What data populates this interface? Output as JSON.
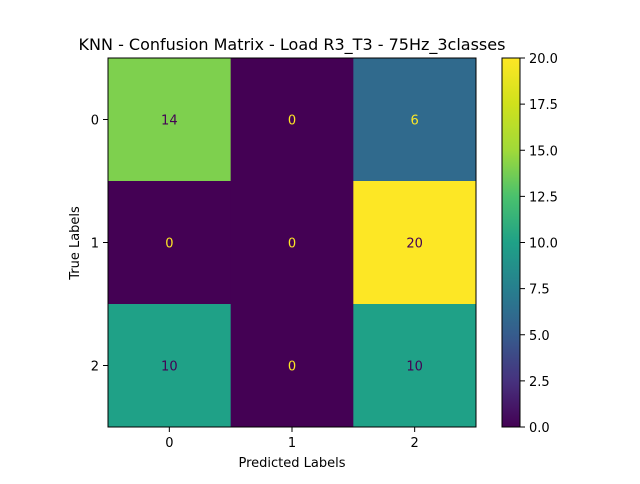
{
  "chart_data": {
    "type": "heatmap",
    "title": "KNN - Confusion Matrix - Load R3_T3 - 75Hz_3classes",
    "xlabel": "Predicted Labels",
    "ylabel": "True Labels",
    "x_categories": [
      "0",
      "1",
      "2"
    ],
    "y_categories": [
      "0",
      "1",
      "2"
    ],
    "matrix": [
      [
        14,
        0,
        6
      ],
      [
        0,
        0,
        20
      ],
      [
        10,
        0,
        10
      ]
    ],
    "colorbar": {
      "min": 0.0,
      "max": 20.0,
      "ticks": [
        "0.0",
        "2.5",
        "5.0",
        "7.5",
        "10.0",
        "12.5",
        "15.0",
        "17.5",
        "20.0"
      ],
      "colormap": "viridis"
    },
    "colors": {
      "low_text": "#fde725",
      "high_text": "#440154"
    }
  }
}
